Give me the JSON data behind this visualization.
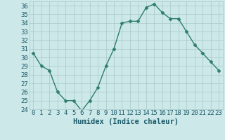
{
  "x": [
    0,
    1,
    2,
    3,
    4,
    5,
    6,
    7,
    8,
    9,
    10,
    11,
    12,
    13,
    14,
    15,
    16,
    17,
    18,
    19,
    20,
    21,
    22,
    23
  ],
  "y": [
    30.5,
    29,
    28.5,
    26,
    25,
    25,
    23.8,
    25,
    26.5,
    29,
    31,
    34,
    34.2,
    34.2,
    35.8,
    36.2,
    35.2,
    34.5,
    34.5,
    33,
    31.5,
    30.5,
    29.5,
    28.5
  ],
  "line_color": "#2e7d6e",
  "marker": "D",
  "marker_size": 2.5,
  "bg_color": "#cce8e8",
  "grid_color": "#aac8c8",
  "xlabel": "Humidex (Indice chaleur)",
  "ylim": [
    24,
    36.5
  ],
  "yticks": [
    24,
    25,
    26,
    27,
    28,
    29,
    30,
    31,
    32,
    33,
    34,
    35,
    36
  ],
  "xticks": [
    0,
    1,
    2,
    3,
    4,
    5,
    6,
    7,
    8,
    9,
    10,
    11,
    12,
    13,
    14,
    15,
    16,
    17,
    18,
    19,
    20,
    21,
    22,
    23
  ],
  "tick_label_fontsize": 6.5,
  "xlabel_fontsize": 7.5,
  "tick_color": "#1a5a6a",
  "axis_label_color": "#1a5a6a",
  "linewidth": 1.0
}
